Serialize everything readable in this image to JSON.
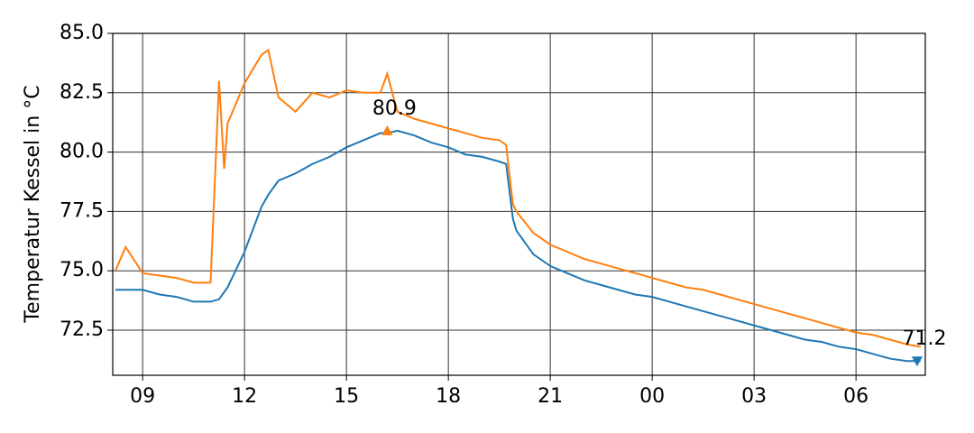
{
  "chart_data": {
    "type": "line",
    "ylabel": "Temperatur Kessel in °C",
    "x": [
      8.2,
      8.5,
      9,
      9.5,
      10,
      10.5,
      11,
      11.25,
      11.4,
      11.5,
      12,
      12.5,
      12.7,
      13,
      13.5,
      14,
      14.5,
      15,
      15.5,
      16,
      16.2,
      16.5,
      17,
      17.5,
      18,
      18.5,
      19,
      19.5,
      19.7,
      19.9,
      20,
      20.5,
      21,
      21.5,
      22,
      22.5,
      23,
      23.5,
      24,
      24.5,
      25,
      25.5,
      26,
      26.5,
      27,
      27.5,
      28,
      28.5,
      29,
      29.5,
      30,
      30.5,
      31,
      31.5,
      31.9
    ],
    "series": [
      {
        "color": "#1f77b4",
        "values": [
          74.2,
          74.2,
          74.2,
          74.0,
          73.9,
          73.7,
          73.7,
          73.8,
          74.1,
          74.3,
          75.8,
          77.7,
          78.2,
          78.8,
          79.1,
          79.5,
          79.8,
          80.2,
          80.5,
          80.8,
          80.8,
          80.9,
          80.7,
          80.4,
          80.2,
          79.9,
          79.8,
          79.6,
          79.5,
          77.2,
          76.7,
          75.7,
          75.2,
          74.9,
          74.6,
          74.4,
          74.2,
          74.0,
          73.9,
          73.7,
          73.5,
          73.3,
          73.1,
          72.9,
          72.7,
          72.5,
          72.3,
          72.1,
          72.0,
          71.8,
          71.7,
          71.5,
          71.3,
          71.2,
          71.2
        ]
      },
      {
        "color": "#ff7f0e",
        "values": [
          75.0,
          76.0,
          74.9,
          74.8,
          74.7,
          74.5,
          74.5,
          83.0,
          79.3,
          81.2,
          82.9,
          84.1,
          84.3,
          82.3,
          81.7,
          82.5,
          82.3,
          82.6,
          82.5,
          82.5,
          83.3,
          81.7,
          81.4,
          81.2,
          81.0,
          80.8,
          80.6,
          80.5,
          80.3,
          77.8,
          77.5,
          76.6,
          76.1,
          75.8,
          75.5,
          75.3,
          75.1,
          74.9,
          74.7,
          74.5,
          74.3,
          74.2,
          74.0,
          73.8,
          73.6,
          73.4,
          73.2,
          73.0,
          72.8,
          72.6,
          72.4,
          72.3,
          72.1,
          71.9,
          71.8
        ]
      }
    ],
    "annotations": [
      {
        "text": "80.9",
        "x": 16.2,
        "y": 80.9,
        "color": "#ff7f0e",
        "marker": "up"
      },
      {
        "text": "71.2",
        "x": 31.8,
        "y": 71.2,
        "color": "#1f77b4",
        "marker": "down"
      }
    ],
    "xlim": [
      8.12,
      32.04
    ],
    "ylim": [
      70.6,
      85
    ],
    "xticks": [
      {
        "value": 9,
        "label": "09"
      },
      12,
      15,
      18,
      21,
      {
        "value": 24,
        "label": "00"
      },
      {
        "value": 27,
        "label": "03"
      },
      {
        "value": 30,
        "label": "06"
      }
    ],
    "yticks": [
      72.5,
      {
        "value": 75,
        "label": "75.0"
      },
      77.5,
      {
        "value": 80,
        "label": "80.0"
      },
      82.5,
      {
        "value": 85,
        "label": "85.0"
      }
    ],
    "grid": true
  }
}
